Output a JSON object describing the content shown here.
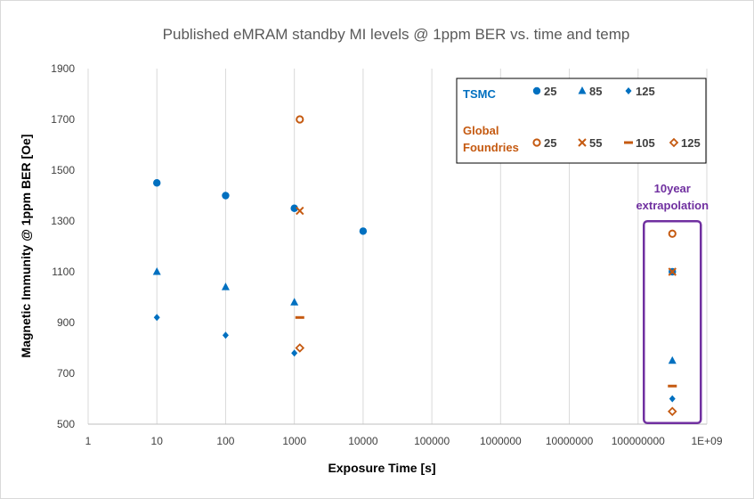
{
  "chart_data": {
    "type": "scatter",
    "title": "Published eMRAM standby MI levels @ 1ppm BER vs. time and temp",
    "xlabel": "Exposure Time [s]",
    "ylabel": "Magnetic Immunity @ 1ppm BER  [Oe]",
    "x_scale": "log",
    "xlim": [
      1,
      1000000000
    ],
    "ylim": [
      500,
      1900
    ],
    "x_tick_labels": [
      "1",
      "10",
      "100",
      "1000",
      "10000",
      "100000",
      "1000000",
      "10000000",
      "100000000",
      "1E+09"
    ],
    "y_tick_labels": [
      "500",
      "700",
      "900",
      "1100",
      "1300",
      "1500",
      "1700",
      "1900"
    ],
    "grid": "vertical",
    "legend_position": "top-right",
    "legend_groups": [
      {
        "label": "TSMC",
        "color": "#0070C0"
      },
      {
        "label": "Global Foundries",
        "color": "#C55A11"
      }
    ],
    "series": [
      {
        "name": "25",
        "group": "TSMC",
        "marker": "circle",
        "color": "#0070C0",
        "points": [
          {
            "x": 10,
            "y": 1450
          },
          {
            "x": 100,
            "y": 1400
          },
          {
            "x": 1000,
            "y": 1350
          },
          {
            "x": 10000,
            "y": 1260
          },
          {
            "x": 315000000,
            "y": 1100
          }
        ]
      },
      {
        "name": "85",
        "group": "TSMC",
        "marker": "triangle",
        "color": "#0070C0",
        "points": [
          {
            "x": 10,
            "y": 1100
          },
          {
            "x": 100,
            "y": 1040
          },
          {
            "x": 1000,
            "y": 980
          },
          {
            "x": 315000000,
            "y": 750
          }
        ]
      },
      {
        "name": "125",
        "group": "TSMC",
        "marker": "diamond",
        "color": "#0070C0",
        "points": [
          {
            "x": 10,
            "y": 920
          },
          {
            "x": 100,
            "y": 850
          },
          {
            "x": 1000,
            "y": 780
          },
          {
            "x": 315000000,
            "y": 600
          }
        ]
      },
      {
        "name": "25",
        "group": "Global Foundries",
        "marker": "circle-open",
        "color": "#C55A11",
        "points": [
          {
            "x": 1200,
            "y": 1700
          },
          {
            "x": 315000000,
            "y": 1250
          }
        ]
      },
      {
        "name": "55",
        "group": "Global Foundries",
        "marker": "x",
        "color": "#C55A11",
        "points": [
          {
            "x": 1200,
            "y": 1340
          },
          {
            "x": 315000000,
            "y": 1100
          }
        ]
      },
      {
        "name": "105",
        "group": "Global Foundries",
        "marker": "dash",
        "color": "#C55A11",
        "points": [
          {
            "x": 1200,
            "y": 920
          },
          {
            "x": 315000000,
            "y": 650
          }
        ]
      },
      {
        "name": "125",
        "group": "Global Foundries",
        "marker": "diamond-open",
        "color": "#C55A11",
        "points": [
          {
            "x": 1200,
            "y": 800
          },
          {
            "x": 315000000,
            "y": 550
          }
        ]
      }
    ],
    "annotations": [
      {
        "text": "10year",
        "color": "#7030A0"
      },
      {
        "text": "extrapolation",
        "color": "#7030A0"
      }
    ],
    "highlight_box": {
      "x": 315000000,
      "y_range": [
        550,
        1250
      ],
      "color": "#7030A0"
    }
  }
}
